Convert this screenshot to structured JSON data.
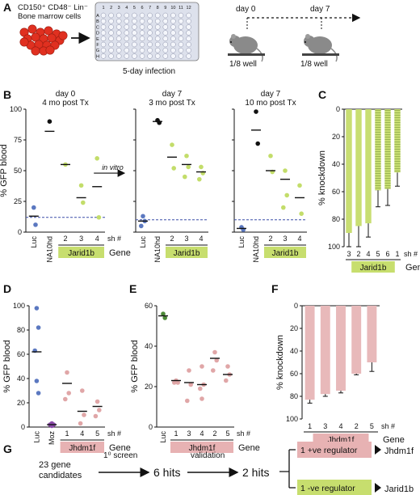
{
  "panel_labels": {
    "A": "A",
    "B": "B",
    "C": "C",
    "D": "D",
    "E": "E",
    "F": "F",
    "G": "G"
  },
  "panelA": {
    "cells_label_1": "CD150⁺ CD48⁻ Lin⁻",
    "cells_label_2": "Bone marrow cells",
    "plate_cols": [
      "1",
      "2",
      "3",
      "4",
      "5",
      "6",
      "7",
      "8",
      "9",
      "10",
      "11",
      "12"
    ],
    "plate_rows": [
      "A",
      "B",
      "C",
      "D",
      "E",
      "F",
      "G",
      "H"
    ],
    "infection_label": "5-day infection",
    "day0": "day 0",
    "day7": "day 7",
    "well0": "1/8 well",
    "well7": "1/8 well"
  },
  "colors": {
    "blue": "#5b78c0",
    "green": "#c3dd6a",
    "green_bar": "#c8de72",
    "purple": "#8a4aa8",
    "pink": "#e0a6a7",
    "pink_bar": "#e8b9ba",
    "gene_green": "#c7de6e",
    "gene_pink": "#e7b2b3",
    "dashed": "#3b4fa8",
    "dark_green": "#4d8a37"
  },
  "chart_data": [
    {
      "id": "B1",
      "type": "scatter",
      "title_1": "day 0",
      "title_2": "4 mo post Tx",
      "ylabel": "% GFP blood",
      "ylim": [
        0,
        100
      ],
      "yticks": [
        0,
        25,
        50,
        75,
        100
      ],
      "categories": [
        "Luc",
        "NA10hd",
        "2",
        "3",
        "4"
      ],
      "sh_label": "sh #",
      "gene": "Jarid1b",
      "gene_label": "Gene",
      "annotation": "in vitro",
      "threshold": 12,
      "points": [
        {
          "cat": 0,
          "y": 20,
          "color": "blue"
        },
        {
          "cat": 0,
          "y": 6,
          "color": "blue"
        },
        {
          "cat": 1,
          "y": 90,
          "color": "black"
        },
        {
          "cat": 2,
          "y": 55,
          "color": "green"
        },
        {
          "cat": 3,
          "y": 38,
          "color": "green"
        },
        {
          "cat": 3,
          "y": 24,
          "color": "green"
        },
        {
          "cat": 4,
          "y": 60,
          "color": "green"
        },
        {
          "cat": 4,
          "y": 12,
          "color": "green"
        }
      ],
      "means": [
        {
          "cat": 0,
          "y": 13
        },
        {
          "cat": 1,
          "y": 82
        },
        {
          "cat": 2,
          "y": 55
        },
        {
          "cat": 3,
          "y": 28
        },
        {
          "cat": 4,
          "y": 37
        }
      ]
    },
    {
      "id": "B2",
      "type": "scatter",
      "title_1": "day 7",
      "title_2": "3 mo post Tx",
      "ylim": [
        0,
        100
      ],
      "yticks": [
        0,
        25,
        50,
        75,
        100
      ],
      "categories": [
        "Luc",
        "NA10hd",
        "2",
        "3",
        "4"
      ],
      "gene": "Jarid1b",
      "threshold": 10,
      "points": [
        {
          "cat": 0,
          "y": 13,
          "color": "blue"
        },
        {
          "cat": 0,
          "y": 9,
          "color": "blue"
        },
        {
          "cat": 0,
          "y": 5,
          "color": "blue"
        },
        {
          "cat": 1,
          "y": 91,
          "color": "black"
        },
        {
          "cat": 1,
          "y": 89,
          "color": "black"
        },
        {
          "cat": 2,
          "y": 71,
          "color": "green"
        },
        {
          "cat": 2,
          "y": 52,
          "color": "green"
        },
        {
          "cat": 3,
          "y": 62,
          "color": "green"
        },
        {
          "cat": 3,
          "y": 53,
          "color": "green"
        },
        {
          "cat": 3,
          "y": 45,
          "color": "green"
        },
        {
          "cat": 4,
          "y": 53,
          "color": "green"
        },
        {
          "cat": 4,
          "y": 48,
          "color": "green"
        },
        {
          "cat": 4,
          "y": 43,
          "color": "green"
        }
      ],
      "means": [
        {
          "cat": 0,
          "y": 9
        },
        {
          "cat": 1,
          "y": 90
        },
        {
          "cat": 2,
          "y": 61
        },
        {
          "cat": 3,
          "y": 55
        },
        {
          "cat": 4,
          "y": 49
        }
      ]
    },
    {
      "id": "B3",
      "type": "scatter",
      "title_1": "day 7",
      "title_2": "10 mo post Tx",
      "ylim": [
        0,
        100
      ],
      "yticks": [
        0,
        25,
        50,
        75,
        100
      ],
      "categories": [
        "Luc",
        "NA10hd",
        "2",
        "3",
        "4"
      ],
      "gene": "Jarid1b",
      "threshold": 10,
      "points": [
        {
          "cat": 0,
          "y": 4,
          "color": "blue"
        },
        {
          "cat": 0,
          "y": 2,
          "color": "blue"
        },
        {
          "cat": 1,
          "y": 98,
          "color": "black"
        },
        {
          "cat": 1,
          "y": 72,
          "color": "black"
        },
        {
          "cat": 2,
          "y": 62,
          "color": "green"
        },
        {
          "cat": 2,
          "y": 49,
          "color": "green"
        },
        {
          "cat": 3,
          "y": 50,
          "color": "green"
        },
        {
          "cat": 3,
          "y": 30,
          "color": "green"
        },
        {
          "cat": 3,
          "y": 20,
          "color": "green"
        },
        {
          "cat": 4,
          "y": 38,
          "color": "green"
        },
        {
          "cat": 4,
          "y": 15,
          "color": "green"
        }
      ],
      "means": [
        {
          "cat": 0,
          "y": 3
        },
        {
          "cat": 1,
          "y": 83
        },
        {
          "cat": 2,
          "y": 50
        },
        {
          "cat": 3,
          "y": 43
        },
        {
          "cat": 4,
          "y": 28
        }
      ]
    },
    {
      "id": "C",
      "type": "bar",
      "ylabel": "% knockdown",
      "ylim": [
        0,
        100
      ],
      "yticks": [
        0,
        20,
        40,
        60,
        80,
        100
      ],
      "categories": [
        "3",
        "2",
        "4",
        "5",
        "6",
        "1"
      ],
      "values": [
        90,
        85,
        83,
        59,
        58,
        46
      ],
      "errors": [
        18,
        15,
        10,
        12,
        12,
        10
      ],
      "hatched": [
        false,
        false,
        false,
        true,
        true,
        true
      ],
      "sh_label": "sh #",
      "gene": "Jarid1b",
      "gene_label": "Gene"
    },
    {
      "id": "D",
      "type": "scatter",
      "ylabel": "% GFP blood",
      "ylim": [
        0,
        100
      ],
      "yticks": [
        0,
        20,
        40,
        60,
        80,
        100
      ],
      "categories": [
        "Luc",
        "Moz",
        "1",
        "4",
        "5"
      ],
      "sh_label": "sh #",
      "gene": "Jhdm1f",
      "gene_label": "Gene",
      "points": [
        {
          "cat": 0,
          "y": 98,
          "color": "blue"
        },
        {
          "cat": 0,
          "y": 82,
          "color": "blue"
        },
        {
          "cat": 0,
          "y": 63,
          "color": "blue"
        },
        {
          "cat": 0,
          "y": 38,
          "color": "blue"
        },
        {
          "cat": 0,
          "y": 28,
          "color": "blue"
        },
        {
          "cat": 1,
          "y": 3,
          "color": "purple"
        },
        {
          "cat": 1,
          "y": 2,
          "color": "purple"
        },
        {
          "cat": 1,
          "y": 2,
          "color": "purple"
        },
        {
          "cat": 1,
          "y": 1,
          "color": "purple"
        },
        {
          "cat": 2,
          "y": 45,
          "color": "pink"
        },
        {
          "cat": 2,
          "y": 28,
          "color": "pink"
        },
        {
          "cat": 2,
          "y": 23,
          "color": "pink"
        },
        {
          "cat": 3,
          "y": 30,
          "color": "pink"
        },
        {
          "cat": 3,
          "y": 10,
          "color": "pink"
        },
        {
          "cat": 3,
          "y": 3,
          "color": "pink"
        },
        {
          "cat": 4,
          "y": 21,
          "color": "pink"
        },
        {
          "cat": 4,
          "y": 14,
          "color": "pink"
        },
        {
          "cat": 4,
          "y": 9,
          "color": "pink"
        }
      ],
      "means": [
        {
          "cat": 0,
          "y": 62
        },
        {
          "cat": 1,
          "y": 2
        },
        {
          "cat": 2,
          "y": 36
        },
        {
          "cat": 3,
          "y": 13
        },
        {
          "cat": 4,
          "y": 17
        }
      ]
    },
    {
      "id": "E",
      "type": "scatter",
      "ylabel": "% GFP blood",
      "ylim": [
        0,
        60
      ],
      "yticks": [
        0,
        20,
        40,
        60
      ],
      "categories": [
        "Luc",
        "1",
        "3",
        "4",
        "2",
        "5"
      ],
      "sh_label": "sh #",
      "gene": "Jhdm1f",
      "gene_label": "Gene",
      "points": [
        {
          "cat": 0,
          "y": 56,
          "color": "dark_green"
        },
        {
          "cat": 0,
          "y": 54,
          "color": "dark_green"
        },
        {
          "cat": 1,
          "y": 23,
          "color": "pink"
        },
        {
          "cat": 1,
          "y": 22,
          "color": "pink"
        },
        {
          "cat": 1,
          "y": 22,
          "color": "pink"
        },
        {
          "cat": 2,
          "y": 28,
          "color": "pink"
        },
        {
          "cat": 2,
          "y": 21,
          "color": "pink"
        },
        {
          "cat": 2,
          "y": 13,
          "color": "pink"
        },
        {
          "cat": 3,
          "y": 30,
          "color": "pink"
        },
        {
          "cat": 3,
          "y": 21,
          "color": "pink"
        },
        {
          "cat": 3,
          "y": 19,
          "color": "pink"
        },
        {
          "cat": 3,
          "y": 14,
          "color": "pink"
        },
        {
          "cat": 4,
          "y": 37,
          "color": "pink"
        },
        {
          "cat": 4,
          "y": 33,
          "color": "pink"
        },
        {
          "cat": 4,
          "y": 28,
          "color": "pink"
        },
        {
          "cat": 5,
          "y": 30,
          "color": "pink"
        },
        {
          "cat": 5,
          "y": 26,
          "color": "pink"
        },
        {
          "cat": 5,
          "y": 23,
          "color": "pink"
        }
      ],
      "means": [
        {
          "cat": 0,
          "y": 55
        },
        {
          "cat": 1,
          "y": 23
        },
        {
          "cat": 2,
          "y": 22
        },
        {
          "cat": 3,
          "y": 21
        },
        {
          "cat": 4,
          "y": 34
        },
        {
          "cat": 5,
          "y": 26
        }
      ]
    },
    {
      "id": "F",
      "type": "bar",
      "ylabel": "% knockdown",
      "ylim": [
        0,
        100
      ],
      "yticks": [
        0,
        20,
        40,
        60,
        80,
        100
      ],
      "categories": [
        "1",
        "3",
        "4",
        "2",
        "5"
      ],
      "values": [
        83,
        78,
        75,
        60,
        50
      ],
      "errors": [
        3,
        2,
        2,
        1,
        8
      ],
      "sh_label": "sh #",
      "gene": "Jhdm1f",
      "gene_label": "Gene"
    }
  ],
  "panelG": {
    "candidates_1": "23 gene",
    "candidates_2": "candidates",
    "screen_label": "1⁰ screen",
    "hits6": "6 hits",
    "validation_label": "validation",
    "hits2": "2 hits",
    "pos_reg": "1 +ve regulator",
    "neg_reg": "1 -ve regulator",
    "gene_pos": "Jhdm1f",
    "gene_neg": "Jarid1b"
  }
}
